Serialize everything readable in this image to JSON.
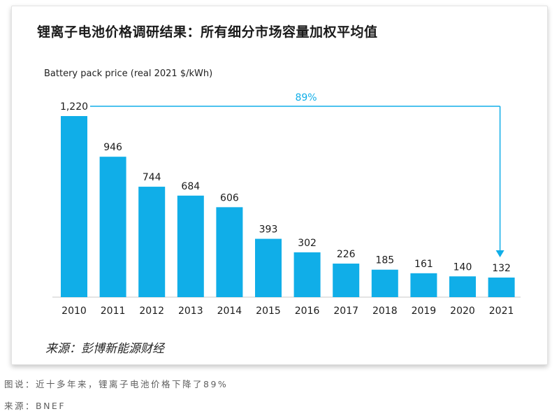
{
  "chart_data": {
    "type": "bar",
    "title": "锂离子电池价格调研结果：所有细分市场容量加权平均值",
    "ylabel": "Battery pack price (real 2021 $/kWh)",
    "xlabel": "",
    "categories": [
      "2010",
      "2011",
      "2012",
      "2013",
      "2014",
      "2015",
      "2016",
      "2017",
      "2018",
      "2019",
      "2020",
      "2021"
    ],
    "values": [
      1220,
      946,
      744,
      684,
      606,
      393,
      302,
      226,
      185,
      161,
      140,
      132
    ],
    "value_labels": [
      "1,220",
      "946",
      "744",
      "684",
      "606",
      "393",
      "302",
      "226",
      "185",
      "161",
      "140",
      "132"
    ],
    "annotation": "89%",
    "bar_color": "#10aee8",
    "grid": false,
    "legend": "none"
  },
  "card": {
    "source_note": "来源：彭博新能源财经"
  },
  "footer": {
    "caption": "图说：近十多年来，锂离子电池价格下降了89%",
    "credit": "来源：BNEF"
  }
}
